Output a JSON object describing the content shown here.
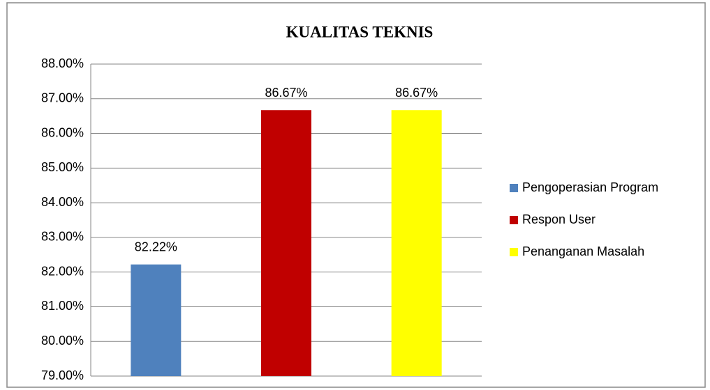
{
  "chart_data": {
    "type": "bar",
    "title": "KUALITAS TEKNIS",
    "categories": [
      null
    ],
    "series": [
      {
        "name": "Pengoperasian Program",
        "color": "#4f81bd",
        "values": [
          82.22
        ],
        "value_labels": [
          "82.22%"
        ]
      },
      {
        "name": "Respon User",
        "color": "#c00000",
        "values": [
          86.67
        ],
        "value_labels": [
          "86.67%"
        ]
      },
      {
        "name": "Penanganan Masalah",
        "color": "#ffff00",
        "values": [
          86.67
        ],
        "value_labels": [
          "86.67%"
        ]
      }
    ],
    "ylim": [
      79,
      88
    ],
    "yticks": [
      {
        "value": 79,
        "label": "79.00%"
      },
      {
        "value": 80,
        "label": "80.00%"
      },
      {
        "value": 81,
        "label": "81.00%"
      },
      {
        "value": 82,
        "label": "82.00%"
      },
      {
        "value": 83,
        "label": "83.00%"
      },
      {
        "value": 84,
        "label": "84.00%"
      },
      {
        "value": 85,
        "label": "85.00%"
      },
      {
        "value": 86,
        "label": "86.00%"
      },
      {
        "value": 87,
        "label": "87.00%"
      },
      {
        "value": 88,
        "label": "88.00%"
      }
    ],
    "grid": true,
    "legend": "right"
  }
}
